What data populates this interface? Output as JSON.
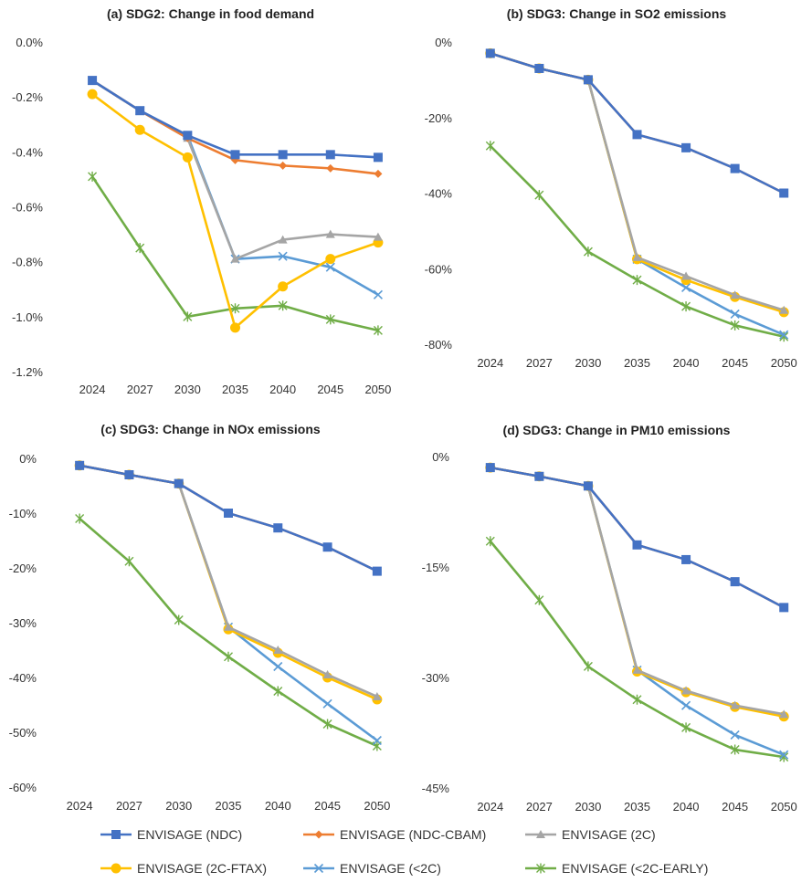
{
  "chart_data": [
    {
      "type": "line",
      "title": "(a) SDG2: Change in food demand",
      "categories": [
        "2024",
        "2027",
        "2030",
        "2035",
        "2040",
        "2045",
        "2050"
      ],
      "ylim": [
        -1.2,
        0
      ],
      "yticks": [
        0,
        -0.2,
        -0.4,
        -0.6,
        -0.8,
        -1.0,
        -1.2
      ],
      "ytick_labels": [
        "0.0%",
        "-0.2%",
        "-0.4%",
        "-0.6%",
        "-0.8%",
        "-1.0%",
        "-1.2%"
      ],
      "grid": false,
      "series": [
        {
          "key": "ndc",
          "name": "ENVISAGE (NDC)",
          "values": [
            -0.14,
            -0.25,
            -0.34,
            -0.41,
            -0.41,
            -0.41,
            -0.42
          ]
        },
        {
          "key": "cbam",
          "name": "ENVISAGE (NDC-CBAM)",
          "values": [
            -0.14,
            -0.25,
            -0.35,
            -0.43,
            -0.45,
            -0.46,
            -0.48
          ]
        },
        {
          "key": "c2",
          "name": "ENVISAGE (2C)",
          "values": [
            -0.14,
            -0.25,
            -0.35,
            -0.79,
            -0.72,
            -0.7,
            -0.71
          ]
        },
        {
          "key": "ftax",
          "name": "ENVISAGE (2C-FTAX)",
          "values": [
            -0.19,
            -0.32,
            -0.42,
            -1.04,
            -0.89,
            -0.79,
            -0.73
          ]
        },
        {
          "key": "lt2",
          "name": "ENVISAGE (<2C)",
          "values": [
            -0.14,
            -0.25,
            -0.34,
            -0.79,
            -0.78,
            -0.82,
            -0.92
          ]
        },
        {
          "key": "early",
          "name": "ENVISAGE (<2C-EARLY)",
          "values": [
            -0.49,
            -0.75,
            -1.0,
            -0.97,
            -0.96,
            -1.01,
            -1.05
          ]
        }
      ]
    },
    {
      "type": "line",
      "title": "(b) SDG3: Change in SO2 emissions",
      "categories": [
        "2024",
        "2027",
        "2030",
        "2035",
        "2040",
        "2045",
        "2050"
      ],
      "ylim": [
        -80,
        0
      ],
      "yticks": [
        0,
        -20,
        -40,
        -60,
        -80
      ],
      "ytick_labels": [
        "0%",
        "-20%",
        "-40%",
        "-60%",
        "-80%"
      ],
      "grid": false,
      "series": [
        {
          "key": "ndc",
          "name": "ENVISAGE (NDC)",
          "values": [
            -3,
            -7,
            -10,
            -24.5,
            -28,
            -33.5,
            -40
          ]
        },
        {
          "key": "cbam",
          "name": "ENVISAGE (NDC-CBAM)",
          "values": [
            -3,
            -7,
            -10,
            -24.5,
            -28,
            -33.5,
            -40
          ]
        },
        {
          "key": "c2",
          "name": "ENVISAGE (2C)",
          "values": [
            -3,
            -7,
            -10,
            -57,
            -62,
            -67,
            -71
          ]
        },
        {
          "key": "ftax",
          "name": "ENVISAGE (2C-FTAX)",
          "values": [
            -3,
            -7,
            -10,
            -57.5,
            -63,
            -67.5,
            -71.5
          ]
        },
        {
          "key": "lt2",
          "name": "ENVISAGE (<2C)",
          "values": [
            -3,
            -7,
            -10,
            -57.5,
            -65,
            -72,
            -77.5
          ]
        },
        {
          "key": "early",
          "name": "ENVISAGE (<2C-EARLY)",
          "values": [
            -27.5,
            -40.5,
            -55.5,
            -63,
            -70,
            -75,
            -78
          ]
        }
      ]
    },
    {
      "type": "line",
      "title": "(c) SDG3: Change in NOx emissions",
      "categories": [
        "2024",
        "2027",
        "2030",
        "2035",
        "2040",
        "2045",
        "2050"
      ],
      "ylim": [
        -60,
        0
      ],
      "yticks": [
        0,
        -10,
        -20,
        -30,
        -40,
        -50,
        -60
      ],
      "ytick_labels": [
        "0%",
        "-10%",
        "-20%",
        "-30%",
        "-40%",
        "-50%",
        "-60%"
      ],
      "grid": false,
      "series": [
        {
          "key": "ndc",
          "name": "ENVISAGE (NDC)",
          "values": [
            -1.3,
            -3,
            -4.6,
            -10,
            -12.7,
            -16.2,
            -20.6
          ]
        },
        {
          "key": "cbam",
          "name": "ENVISAGE (NDC-CBAM)",
          "values": [
            -1.3,
            -3,
            -4.6,
            -10,
            -12.7,
            -16.2,
            -20.6
          ]
        },
        {
          "key": "c2",
          "name": "ENVISAGE (2C)",
          "values": [
            -1.3,
            -3,
            -4.6,
            -30.8,
            -35,
            -39.5,
            -43.5
          ]
        },
        {
          "key": "ftax",
          "name": "ENVISAGE (2C-FTAX)",
          "values": [
            -1.3,
            -3,
            -4.6,
            -31.2,
            -35.5,
            -40,
            -44
          ]
        },
        {
          "key": "lt2",
          "name": "ENVISAGE (<2C)",
          "values": [
            -1.3,
            -3,
            -4.6,
            -30.8,
            -38,
            -44.8,
            -51.5
          ]
        },
        {
          "key": "early",
          "name": "ENVISAGE (<2C-EARLY)",
          "values": [
            -11,
            -18.8,
            -29.5,
            -36.2,
            -42.5,
            -48.5,
            -52.5
          ]
        }
      ]
    },
    {
      "type": "line",
      "title": "(d) SDG3: Change in PM10 emissions",
      "categories": [
        "2024",
        "2027",
        "2030",
        "2035",
        "2040",
        "2045",
        "2050"
      ],
      "ylim": [
        -45,
        0
      ],
      "yticks": [
        0,
        -15,
        -30,
        -45
      ],
      "ytick_labels": [
        "0%",
        "-15%",
        "-30%",
        "-45%"
      ],
      "grid": false,
      "series": [
        {
          "key": "ndc",
          "name": "ENVISAGE (NDC)",
          "values": [
            -1.5,
            -2.7,
            -4,
            -12,
            -14,
            -17,
            -20.5
          ]
        },
        {
          "key": "cbam",
          "name": "ENVISAGE (NDC-CBAM)",
          "values": [
            -1.5,
            -2.7,
            -4,
            -12,
            -14,
            -17,
            -20.5
          ]
        },
        {
          "key": "c2",
          "name": "ENVISAGE (2C)",
          "values": [
            -1.5,
            -2.7,
            -4,
            -29,
            -31.8,
            -33.8,
            -35
          ]
        },
        {
          "key": "ftax",
          "name": "ENVISAGE (2C-FTAX)",
          "values": [
            -1.5,
            -2.7,
            -4,
            -29.2,
            -32,
            -34,
            -35.3
          ]
        },
        {
          "key": "lt2",
          "name": "ENVISAGE (<2C)",
          "values": [
            -1.5,
            -2.7,
            -4,
            -29,
            -33.8,
            -37.8,
            -40.5
          ]
        },
        {
          "key": "early",
          "name": "ENVISAGE (<2C-EARLY)",
          "values": [
            -11.5,
            -19.5,
            -28.5,
            -33,
            -36.8,
            -39.8,
            -40.8
          ]
        }
      ]
    }
  ],
  "legend": {
    "placement": "bottom",
    "items": [
      {
        "key": "ndc",
        "label": "ENVISAGE (NDC)",
        "color": "#4472C4",
        "marker": "square"
      },
      {
        "key": "cbam",
        "label": "ENVISAGE (NDC-CBAM)",
        "color": "#ED7D31",
        "marker": "diamond"
      },
      {
        "key": "c2",
        "label": "ENVISAGE (2C)",
        "color": "#A5A5A5",
        "marker": "triangle"
      },
      {
        "key": "ftax",
        "label": "ENVISAGE (2C-FTAX)",
        "color": "#FFC000",
        "marker": "circle"
      },
      {
        "key": "lt2",
        "label": "ENVISAGE (<2C)",
        "color": "#5B9BD5",
        "marker": "x"
      },
      {
        "key": "early",
        "label": "ENVISAGE (<2C-EARLY)",
        "color": "#70AD47",
        "marker": "star"
      }
    ]
  }
}
